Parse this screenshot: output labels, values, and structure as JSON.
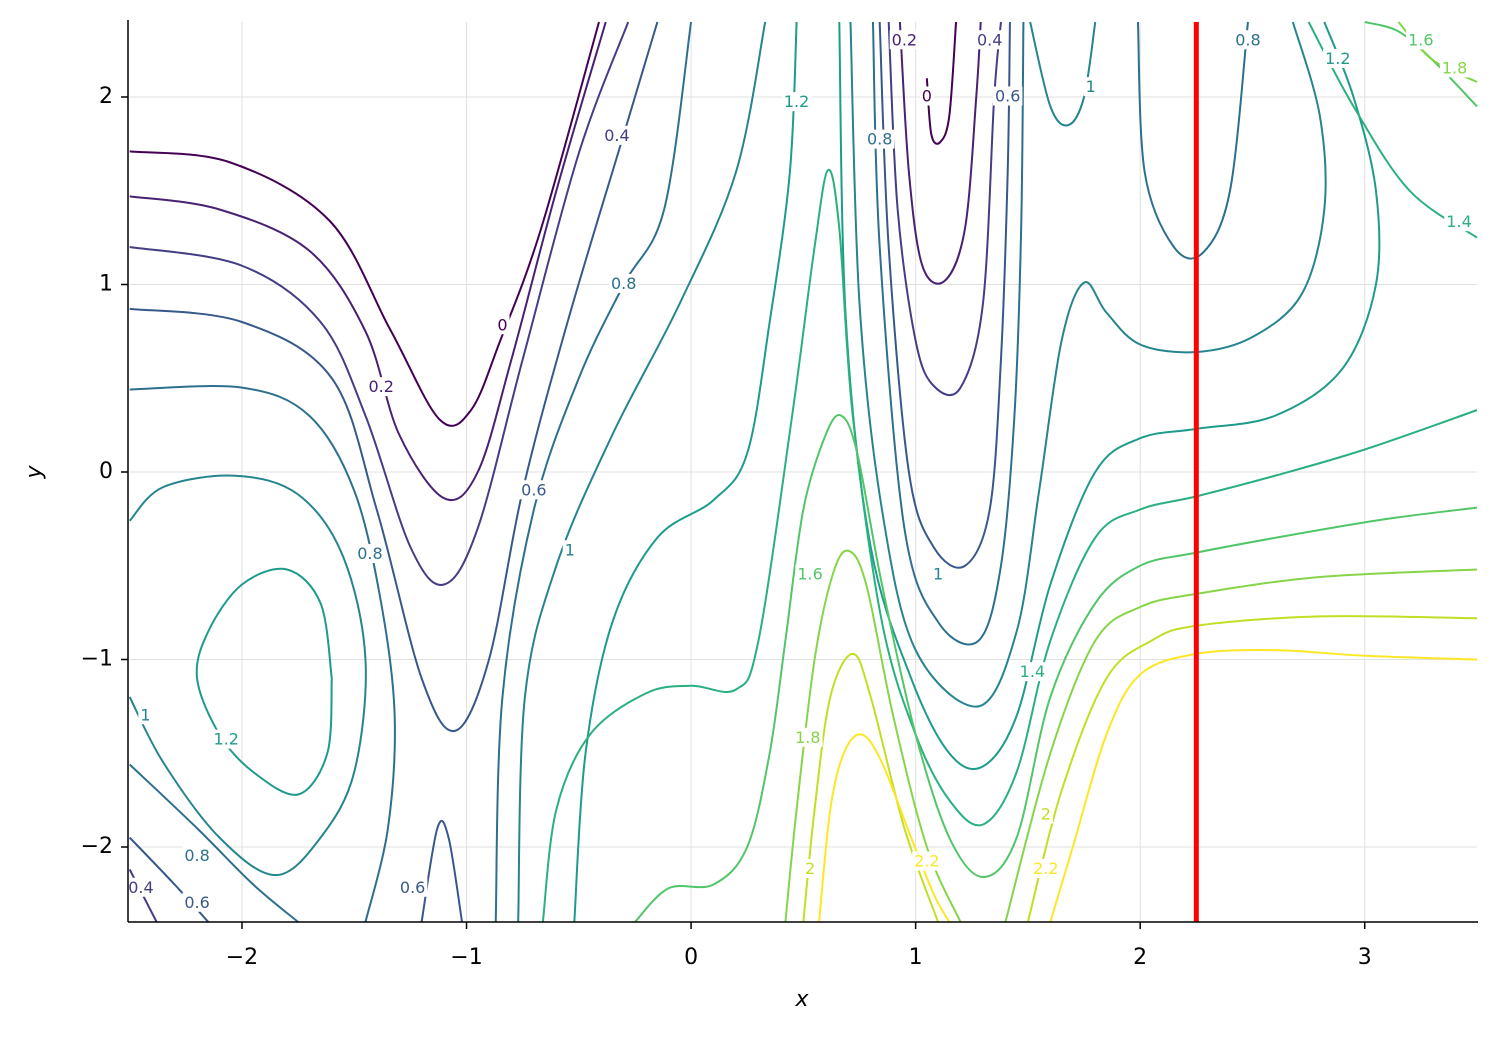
{
  "chart_data": {
    "type": "contour",
    "x_label": "x",
    "y_label": "y",
    "xlim": [
      -2.5,
      3.5
    ],
    "ylim": [
      -2.4,
      2.4
    ],
    "xticks": [
      {
        "value": -2,
        "label": "−2"
      },
      {
        "value": -1,
        "label": "−1"
      },
      0,
      1,
      2,
      3
    ],
    "yticks": [
      {
        "value": -2,
        "label": "−2"
      },
      {
        "value": -1,
        "label": "−1"
      },
      0,
      1,
      2
    ],
    "grid": true,
    "vline": {
      "x": 2.25,
      "color": "#ff0000"
    },
    "series": [
      {
        "level": 0,
        "color": "#440154",
        "pieces": [
          {
            "x": [
              -2.5,
              -2.05,
              -1.61,
              -1.34,
              -1.12,
              -0.98,
              -0.85,
              -0.67,
              -0.41
            ],
            "y": [
              1.71,
              1.65,
              1.34,
              0.76,
              0.28,
              0.33,
              0.7,
              1.29,
              2.4
            ]
          },
          {
            "x": [
              1.05,
              1.07,
              1.11,
              1.15,
              1.18
            ],
            "y": [
              2.1,
              1.8,
              1.76,
              1.9,
              2.4
            ]
          }
        ],
        "label_points": {
          "x": [
            -0.84,
            1.05
          ],
          "y": [
            0.78,
            2.0
          ]
        }
      },
      {
        "level": 0.2,
        "color": "#482173",
        "pieces": [
          {
            "x": [
              -2.5,
              -2.1,
              -1.7,
              -1.45,
              -1.3,
              -1.1,
              -0.95,
              -0.8,
              -0.6,
              -0.38
            ],
            "y": [
              1.47,
              1.4,
              1.18,
              0.75,
              0.2,
              -0.14,
              0.0,
              0.6,
              1.5,
              2.4
            ]
          },
          {
            "x": [
              0.93,
              0.97,
              1.03,
              1.13,
              1.22,
              1.27,
              1.29
            ],
            "y": [
              2.4,
              1.6,
              1.1,
              1.02,
              1.3,
              2.0,
              2.4
            ]
          }
        ],
        "label_points": {
          "x": [
            -1.38,
            0.95
          ],
          "y": [
            0.45,
            2.3
          ]
        }
      },
      {
        "level": 0.4,
        "color": "#433e85",
        "pieces": [
          {
            "x": [
              -2.5,
              -2.0,
              -1.65,
              -1.45,
              -1.25,
              -1.1,
              -0.95,
              -0.75,
              -0.5,
              -0.28
            ],
            "y": [
              1.2,
              1.1,
              0.8,
              0.3,
              -0.4,
              -0.6,
              -0.3,
              0.6,
              1.7,
              2.4
            ]
          },
          {
            "x": [
              0.88,
              0.92,
              1.0,
              1.08,
              1.2,
              1.3,
              1.35,
              1.38
            ],
            "y": [
              2.4,
              1.4,
              0.7,
              0.46,
              0.45,
              0.9,
              2.0,
              2.4
            ]
          },
          {
            "x": [
              -2.5,
              -2.38
            ],
            "y": [
              -2.12,
              -2.4
            ]
          }
        ],
        "label_points": {
          "x": [
            -0.33,
            1.33,
            -2.45
          ],
          "y": [
            1.79,
            2.3,
            -2.22
          ]
        }
      },
      {
        "level": 0.6,
        "color": "#38588c",
        "pieces": [
          {
            "x": [
              -2.5,
              -2.0,
              -1.6,
              -1.4,
              -1.2,
              -1.05,
              -0.9,
              -0.75,
              -0.55,
              -0.3,
              -0.15
            ],
            "y": [
              0.87,
              0.8,
              0.5,
              -0.2,
              -1.1,
              -1.38,
              -1.0,
              -0.1,
              0.8,
              1.8,
              2.4
            ]
          },
          {
            "x": [
              0.84,
              0.88,
              0.97,
              1.08,
              1.22,
              1.33,
              1.38,
              1.41,
              1.42
            ],
            "y": [
              2.4,
              1.2,
              0.0,
              -0.4,
              -0.5,
              -0.2,
              0.6,
              1.6,
              2.4
            ]
          },
          {
            "x": [
              -1.2,
              -1.13,
              -1.08,
              -1.02
            ],
            "y": [
              -2.4,
              -1.9,
              -1.95,
              -2.4
            ]
          },
          {
            "x": [
              -2.5,
              -2.3,
              -2.15
            ],
            "y": [
              -1.95,
              -2.2,
              -2.4
            ]
          }
        ],
        "label_points": {
          "x": [
            -0.7,
            1.41,
            -1.24,
            -2.2
          ],
          "y": [
            -0.1,
            2.0,
            -2.22,
            -2.3
          ]
        }
      },
      {
        "level": 0.8,
        "color": "#2d708e",
        "pieces": [
          {
            "x": [
              -2.5,
              -2.0,
              -1.7,
              -1.5,
              -1.38,
              -1.32,
              -1.35,
              -1.45
            ],
            "y": [
              0.44,
              0.45,
              0.3,
              -0.1,
              -0.7,
              -1.3,
              -1.9,
              -2.4
            ]
          },
          {
            "x": [
              -0.87,
              -0.84,
              -0.7,
              -0.5,
              -0.3,
              -0.12,
              0.0
            ],
            "y": [
              -2.4,
              -1.2,
              -0.2,
              0.5,
              1.0,
              1.4,
              2.4
            ]
          },
          {
            "x": [
              0.81,
              0.84,
              0.95,
              1.1,
              1.28,
              1.38,
              1.44,
              1.47,
              1.48
            ],
            "y": [
              2.4,
              1.2,
              -0.3,
              -0.8,
              -0.9,
              -0.5,
              0.3,
              1.3,
              2.4
            ]
          },
          {
            "x": [
              1.99,
              2.02,
              2.15,
              2.28,
              2.4,
              2.48
            ],
            "y": [
              2.4,
              1.6,
              1.2,
              1.17,
              1.5,
              2.4
            ]
          },
          {
            "x": [
              -2.5,
              -2.2,
              -1.95,
              -1.75
            ],
            "y": [
              -1.56,
              -1.9,
              -2.2,
              -2.4
            ]
          }
        ],
        "label_points": {
          "x": [
            -1.43,
            -0.3,
            0.84,
            2.48,
            -2.2
          ],
          "y": [
            -0.44,
            1.0,
            1.77,
            2.3,
            -2.05
          ]
        }
      },
      {
        "level": 1,
        "color": "#25858e",
        "pieces": [
          {
            "x": [
              -2.5,
              -2.35,
              -2.03,
              -1.75,
              -1.55,
              -1.45,
              -1.5,
              -1.65,
              -1.85,
              -2.1,
              -2.35,
              -2.5
            ],
            "y": [
              -0.26,
              -0.08,
              -0.02,
              -0.12,
              -0.45,
              -1.0,
              -1.6,
              -1.95,
              -2.15,
              -1.95,
              -1.55,
              -1.2
            ]
          },
          {
            "x": [
              -0.77,
              -0.74,
              -0.6,
              -0.35,
              -0.05,
              0.2,
              0.33
            ],
            "y": [
              -2.4,
              -1.2,
              -0.5,
              0.2,
              0.9,
              1.6,
              2.4
            ]
          },
          {
            "x": [
              0.71,
              0.75,
              0.85,
              1.0,
              1.28,
              1.45,
              1.55,
              1.65,
              1.75,
              1.85,
              2.0,
              2.25,
              2.5,
              2.72,
              2.82,
              2.8,
              2.68
            ],
            "y": [
              2.4,
              0.9,
              -0.2,
              -0.95,
              -1.25,
              -0.85,
              -0.1,
              0.7,
              1.01,
              0.85,
              0.68,
              0.64,
              0.72,
              0.95,
              1.4,
              1.9,
              2.4
            ]
          },
          {
            "x": [
              1.51,
              1.6,
              1.68,
              1.75,
              1.8
            ],
            "y": [
              2.4,
              1.95,
              1.85,
              2.0,
              2.4
            ]
          }
        ],
        "label_points": {
          "x": [
            -2.43,
            -0.54,
            1.1,
            1.78
          ],
          "y": [
            -1.3,
            -0.42,
            -0.55,
            2.05
          ]
        }
      },
      {
        "level": 1.2,
        "color": "#1e9b8a",
        "pieces": [
          {
            "x": [
              -1.6,
              -1.65,
              -1.8,
              -2.0,
              -2.15,
              -2.2,
              -2.1,
              -1.95,
              -1.75,
              -1.62,
              -1.6
            ],
            "y": [
              -1.1,
              -0.7,
              -0.52,
              -0.6,
              -0.85,
              -1.1,
              -1.4,
              -1.6,
              -1.72,
              -1.5,
              -1.1
            ]
          },
          {
            "x": [
              -0.52,
              -0.47,
              -0.35,
              -0.15,
              0.1,
              0.25,
              0.35,
              0.44,
              0.47
            ],
            "y": [
              -2.4,
              -1.5,
              -0.8,
              -0.35,
              -0.15,
              0.1,
              0.8,
              1.6,
              2.4
            ]
          },
          {
            "x": [
              0.66,
              0.69,
              0.8,
              0.98,
              1.15,
              1.3,
              1.45,
              1.6,
              1.8,
              2.0,
              2.25,
              2.6,
              2.9,
              3.05,
              3.05,
              2.95,
              2.82
            ],
            "y": [
              2.4,
              0.8,
              -0.4,
              -1.1,
              -1.5,
              -1.57,
              -1.3,
              -0.6,
              0.0,
              0.18,
              0.23,
              0.3,
              0.55,
              1.0,
              1.5,
              2.0,
              2.4
            ]
          }
        ],
        "label_points": {
          "x": [
            -2.07,
            0.47,
            2.88
          ],
          "y": [
            -1.43,
            1.97,
            2.2
          ]
        }
      },
      {
        "level": 1.4,
        "color": "#2ab07f",
        "pieces": [
          {
            "x": [
              -0.66,
              -0.6,
              -0.45,
              -0.2,
              0.0,
              0.2,
              0.3,
              0.45,
              0.55,
              0.61,
              0.66,
              0.72,
              0.85,
              1.0,
              1.15,
              1.3,
              1.45,
              1.6,
              1.8,
              2.0,
              2.25,
              2.6,
              3.0,
              3.5
            ],
            "y": [
              -2.4,
              -1.8,
              -1.4,
              -1.18,
              -1.14,
              -1.16,
              -0.9,
              0.3,
              1.2,
              1.61,
              1.3,
              0.3,
              -0.8,
              -1.4,
              -1.75,
              -1.88,
              -1.6,
              -0.9,
              -0.35,
              -0.2,
              -0.13,
              -0.02,
              0.12,
              0.33
            ]
          },
          {
            "x": [
              2.75,
              2.95,
              3.2,
              3.5
            ],
            "y": [
              2.4,
              1.95,
              1.5,
              1.25
            ]
          }
        ],
        "label_points": {
          "x": [
            1.52,
            3.42
          ],
          "y": [
            -1.07,
            1.33
          ]
        }
      },
      {
        "level": 1.6,
        "color": "#52c569",
        "pieces": [
          {
            "x": [
              -0.25,
              -0.1,
              0.1,
              0.25,
              0.35,
              0.42,
              0.5,
              0.6,
              0.67,
              0.74,
              0.85,
              1.0,
              1.15,
              1.3,
              1.45,
              1.6,
              1.8,
              2.0,
              2.25,
              2.7,
              3.1,
              3.5
            ],
            "y": [
              -2.4,
              -2.22,
              -2.2,
              -2.0,
              -1.5,
              -0.9,
              -0.2,
              0.2,
              0.3,
              0.1,
              -0.6,
              -1.4,
              -1.95,
              -2.16,
              -1.95,
              -1.2,
              -0.7,
              -0.5,
              -0.43,
              -0.33,
              -0.25,
              -0.19
            ]
          },
          {
            "x": [
              3.0,
              3.15,
              3.3,
              3.5
            ],
            "y": [
              2.4,
              2.35,
              2.2,
              1.95
            ]
          }
        ],
        "label_points": {
          "x": [
            0.53,
            3.25
          ],
          "y": [
            -0.55,
            2.3
          ]
        }
      },
      {
        "level": 1.8,
        "color": "#86d549",
        "pieces": [
          {
            "x": [
              0.42,
              0.47,
              0.55,
              0.63,
              0.7,
              0.78,
              0.9,
              1.05,
              1.2
            ],
            "y": [
              -2.4,
              -1.8,
              -1.0,
              -0.55,
              -0.42,
              -0.6,
              -1.3,
              -2.0,
              -2.4
            ]
          },
          {
            "x": [
              1.4,
              1.6,
              1.8,
              2.0,
              2.25,
              2.8,
              3.5
            ],
            "y": [
              -2.4,
              -1.5,
              -0.9,
              -0.72,
              -0.65,
              -0.56,
              -0.52
            ]
          },
          {
            "x": [
              3.15,
              3.3,
              3.5
            ],
            "y": [
              2.4,
              2.2,
              2.08
            ]
          }
        ],
        "label_points": {
          "x": [
            0.52,
            3.4
          ],
          "y": [
            -1.42,
            2.15
          ]
        }
      },
      {
        "level": 2,
        "color": "#c2df23",
        "pieces": [
          {
            "x": [
              0.5,
              0.55,
              0.62,
              0.72,
              0.8,
              0.95,
              1.1
            ],
            "y": [
              -2.4,
              -1.8,
              -1.2,
              -0.97,
              -1.2,
              -1.9,
              -2.4
            ]
          },
          {
            "x": [
              1.5,
              1.65,
              1.85,
              2.05,
              2.25,
              2.8,
              3.5
            ],
            "y": [
              -2.4,
              -1.7,
              -1.1,
              -0.9,
              -0.82,
              -0.77,
              -0.78
            ]
          }
        ],
        "label_points": {
          "x": [
            0.53,
            1.58
          ],
          "y": [
            -2.12,
            -1.83
          ]
        }
      },
      {
        "level": 2.2,
        "color": "#fde725",
        "pieces": [
          {
            "x": [
              0.57,
              0.62,
              0.68,
              0.76,
              0.85,
              0.98,
              1.08,
              1.15
            ],
            "y": [
              -2.4,
              -1.8,
              -1.5,
              -1.4,
              -1.55,
              -1.95,
              -2.25,
              -2.4
            ]
          },
          {
            "x": [
              1.6,
              1.7,
              1.85,
              2.0,
              2.25,
              2.6,
              3.0,
              3.5
            ],
            "y": [
              -2.4,
              -2.0,
              -1.4,
              -1.08,
              -0.97,
              -0.95,
              -0.98,
              -1.0
            ]
          }
        ],
        "label_points": {
          "x": [
            1.05,
            1.58
          ],
          "y": [
            -2.08,
            -2.12
          ]
        }
      }
    ]
  }
}
